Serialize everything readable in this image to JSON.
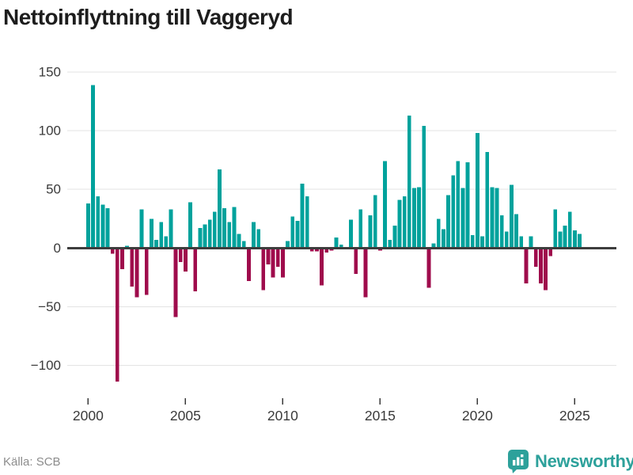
{
  "title": "Nettoinflyttning till Vaggeryd",
  "footer": {
    "source_label": "Källa: SCB",
    "brand": "Newsworthy",
    "brand_icon": "bar-chart-badge-icon"
  },
  "colors": {
    "positive": "#00a29c",
    "negative": "#9f0c4c",
    "zero_line": "#3d3d3d",
    "grid": "#e3e3e3",
    "title_text": "#1d1d1d",
    "axis_text": "#3a3a3a",
    "source_text": "#8c8c8c",
    "brand": "#2da19b",
    "background": "#ffffff"
  },
  "chart_data": {
    "type": "bar",
    "title": "Nettoinflyttning till Vaggeryd",
    "xlabel": "",
    "ylabel": "",
    "frequency": "quarterly",
    "start_year": 2000,
    "start_quarter": 1,
    "x_ticks": [
      2000,
      2005,
      2010,
      2015,
      2020,
      2025
    ],
    "x_tick_labels": [
      "2000",
      "2005",
      "2010",
      "2015",
      "2020",
      "2025"
    ],
    "y_ticks": [
      150,
      100,
      50,
      0,
      -50,
      -100
    ],
    "y_tick_labels": [
      "150",
      "100",
      "50",
      "0",
      "−50",
      "−100"
    ],
    "ylim": [
      -125,
      157
    ],
    "grid": "horizontal",
    "legend": "none",
    "series": [
      {
        "name": "Nettoinflyttning",
        "values": [
          38,
          139,
          44,
          37,
          34,
          -5,
          -114,
          -18,
          2,
          -33,
          -42,
          33,
          -40,
          25,
          7,
          22,
          10,
          33,
          -59,
          -12,
          -20,
          39,
          -37,
          17,
          20,
          24,
          31,
          67,
          34,
          22,
          35,
          12,
          6,
          -28,
          22,
          16,
          -36,
          -14,
          -25,
          -16,
          -25,
          6,
          27,
          23,
          55,
          44,
          -3,
          -3,
          -32,
          -4,
          -2,
          9,
          3,
          1,
          24,
          -22,
          33,
          -42,
          28,
          45,
          -2,
          74,
          7,
          19,
          41,
          44,
          113,
          51,
          52,
          104,
          -34,
          4,
          25,
          16,
          45,
          62,
          74,
          51,
          73,
          11,
          98,
          10,
          82,
          52,
          51,
          28,
          14,
          54,
          29,
          10,
          -30,
          10,
          -16,
          -30,
          -36,
          -7,
          33,
          14,
          19,
          31,
          15,
          12
        ]
      }
    ]
  }
}
